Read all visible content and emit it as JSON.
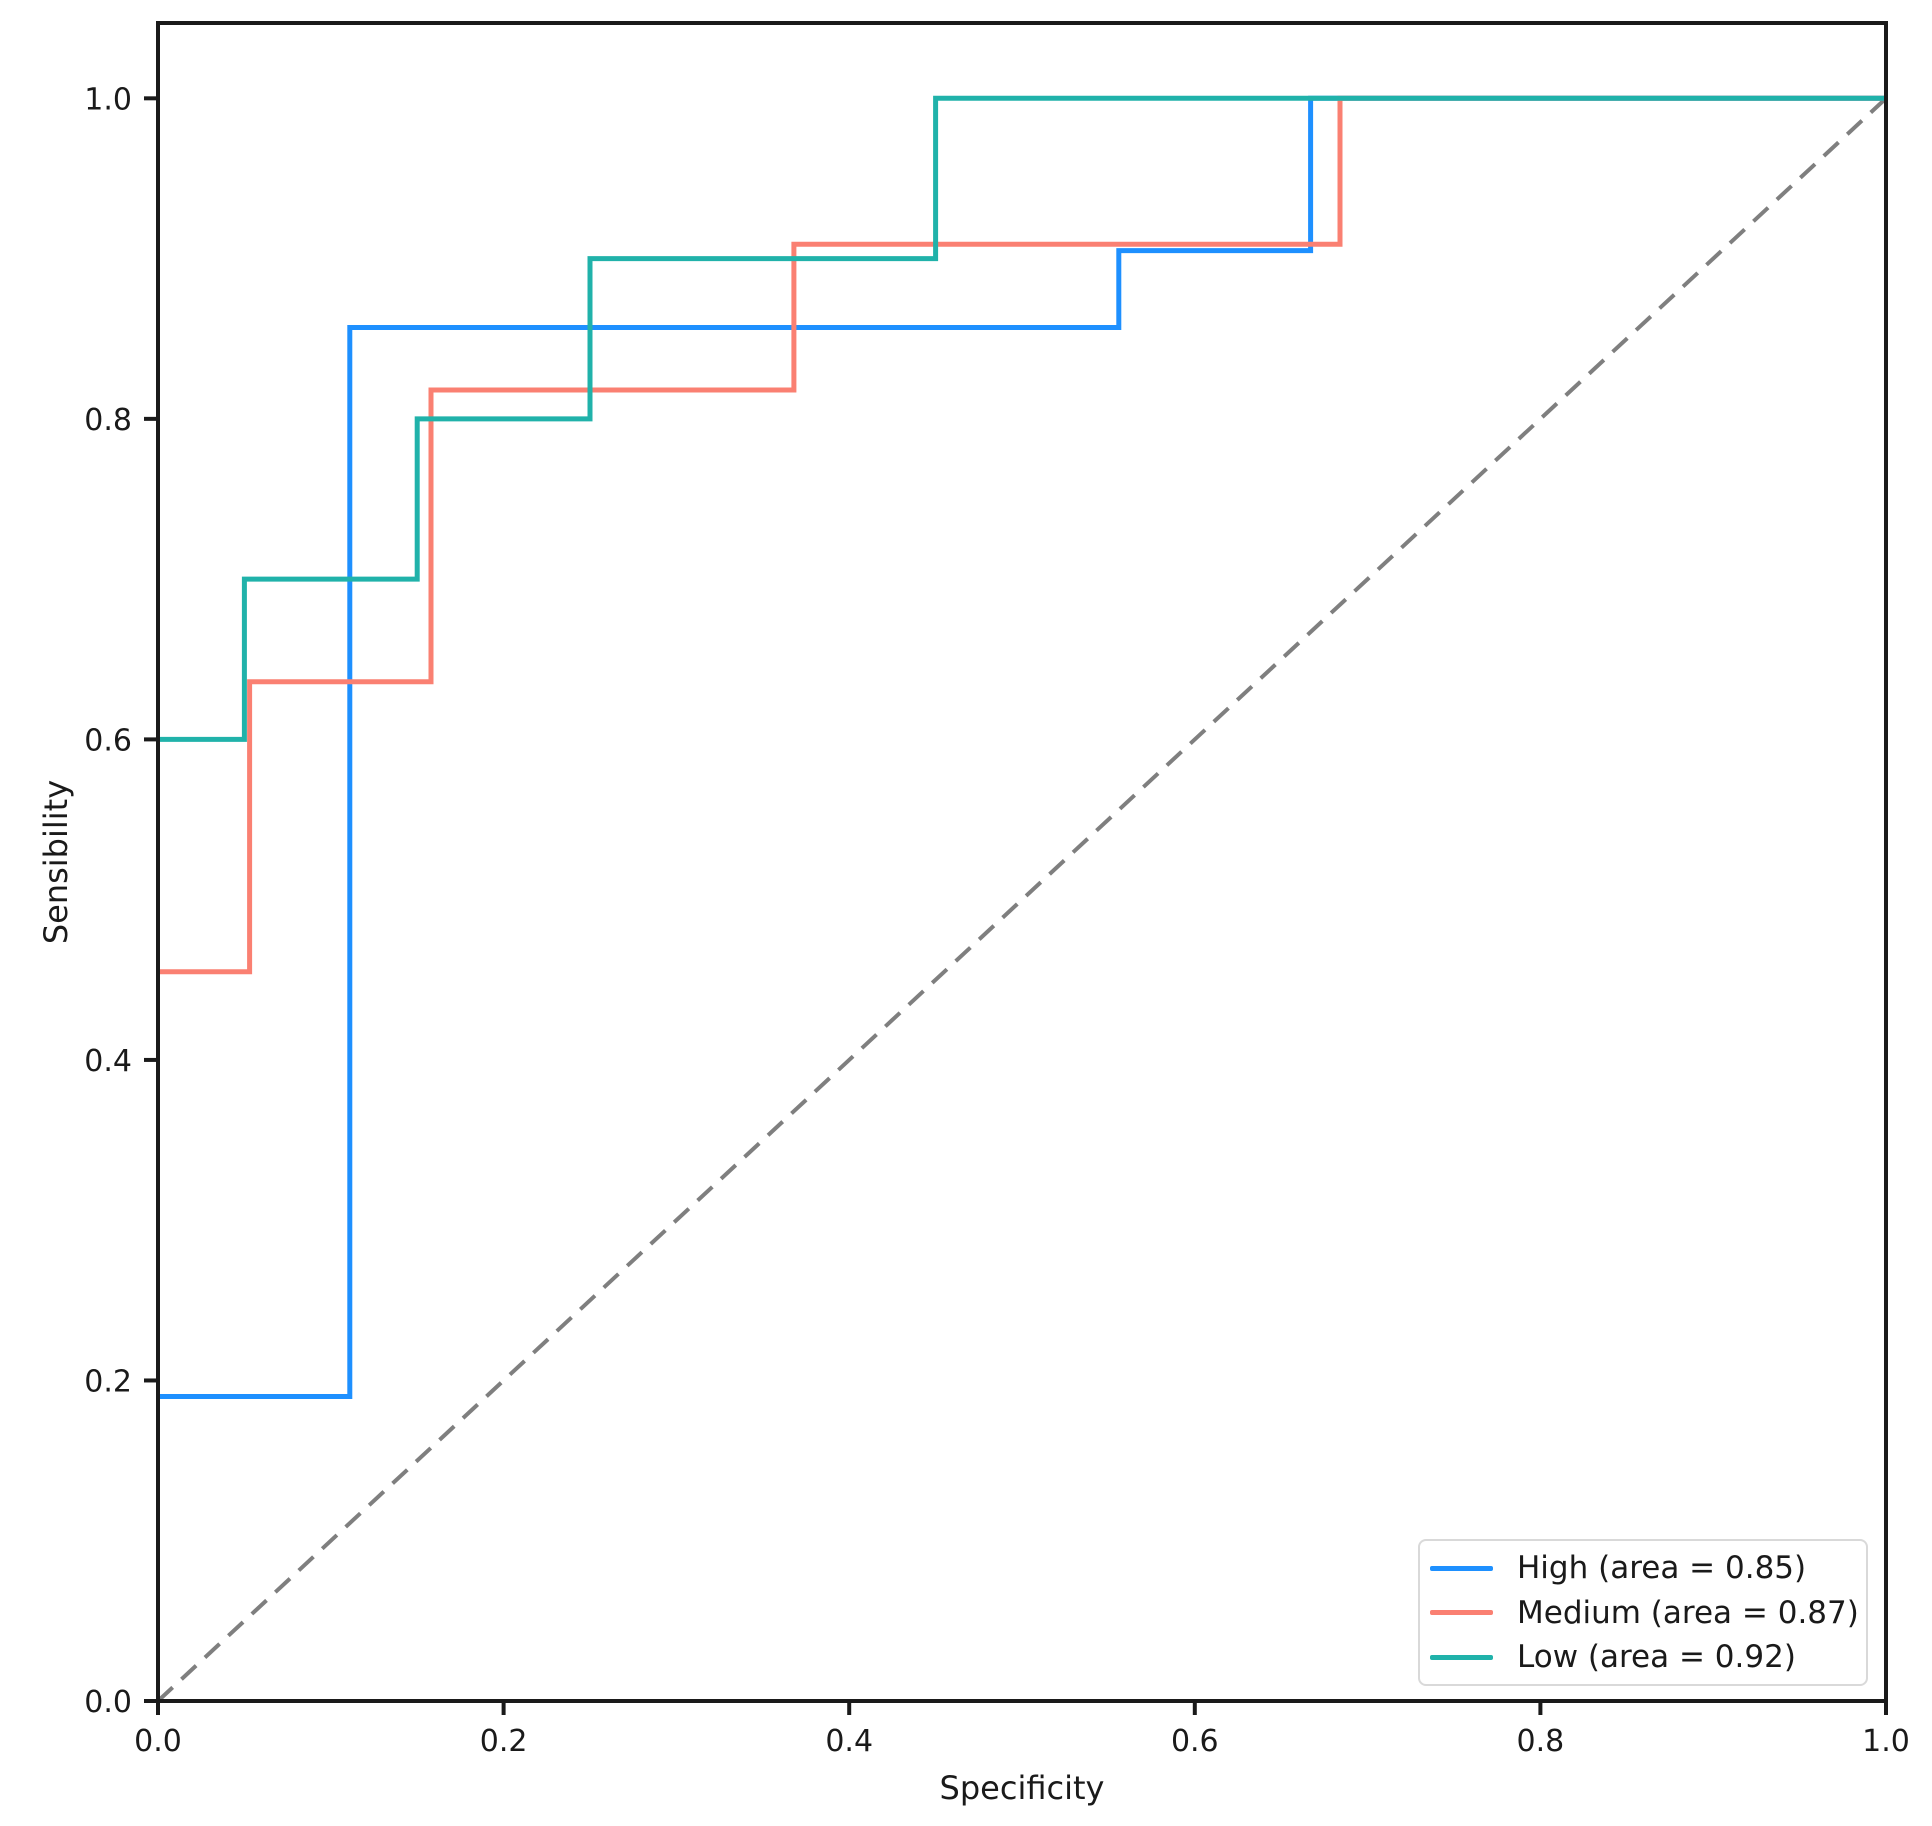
{
  "chart_data": {
    "type": "line",
    "subtype": "roc-step-curves",
    "title": "",
    "xlabel": "Specificity",
    "ylabel": "Sensibility",
    "xlim": [
      0,
      1
    ],
    "ylim": [
      0,
      1.047
    ],
    "x_ticks": [
      0.0,
      0.2,
      0.4,
      0.6,
      0.8,
      1.0
    ],
    "y_ticks": [
      0.0,
      0.2,
      0.4,
      0.6,
      0.8,
      1.0
    ],
    "grid": false,
    "legend_position": "lower right",
    "axis_color": "#1a1a1a",
    "series": [
      {
        "name": "High",
        "auc": 0.85,
        "legend_label": "High (area = 0.85)",
        "color": "#1E90FF",
        "points": [
          [
            0,
            0.19
          ],
          [
            0.111,
            0.19
          ],
          [
            0.111,
            0.857
          ],
          [
            0.556,
            0.857
          ],
          [
            0.556,
            0.905
          ],
          [
            0.667,
            0.905
          ],
          [
            0.667,
            1.0
          ],
          [
            1.0,
            1.0
          ]
        ]
      },
      {
        "name": "Medium",
        "auc": 0.87,
        "legend_label": "Medium (area = 0.87)",
        "color": "#FA8072",
        "points": [
          [
            0,
            0.455
          ],
          [
            0.053,
            0.455
          ],
          [
            0.053,
            0.636
          ],
          [
            0.158,
            0.636
          ],
          [
            0.158,
            0.818
          ],
          [
            0.368,
            0.818
          ],
          [
            0.368,
            0.909
          ],
          [
            0.684,
            0.909
          ],
          [
            0.684,
            1.0
          ],
          [
            1.0,
            1.0
          ]
        ]
      },
      {
        "name": "Low",
        "auc": 0.92,
        "legend_label": "Low (area = 0.92)",
        "color": "#20B2AA",
        "points": [
          [
            0,
            0.6
          ],
          [
            0.05,
            0.6
          ],
          [
            0.05,
            0.7
          ],
          [
            0.15,
            0.7
          ],
          [
            0.15,
            0.8
          ],
          [
            0.25,
            0.8
          ],
          [
            0.25,
            0.9
          ],
          [
            0.45,
            0.9
          ],
          [
            0.45,
            1.0
          ],
          [
            1.0,
            1.0
          ]
        ]
      }
    ],
    "reference_line": {
      "name": "chance-diagonal",
      "color": "#7f7f7f",
      "dash": [
        20,
        12
      ],
      "points": [
        [
          0,
          0
        ],
        [
          1,
          1
        ]
      ]
    }
  },
  "legend": {
    "items": [
      {
        "label": "High (area = 0.85)",
        "color": "#1E90FF"
      },
      {
        "label": "Medium (area = 0.87)",
        "color": "#FA8072"
      },
      {
        "label": "Low (area = 0.92)",
        "color": "#20B2AA"
      }
    ]
  }
}
